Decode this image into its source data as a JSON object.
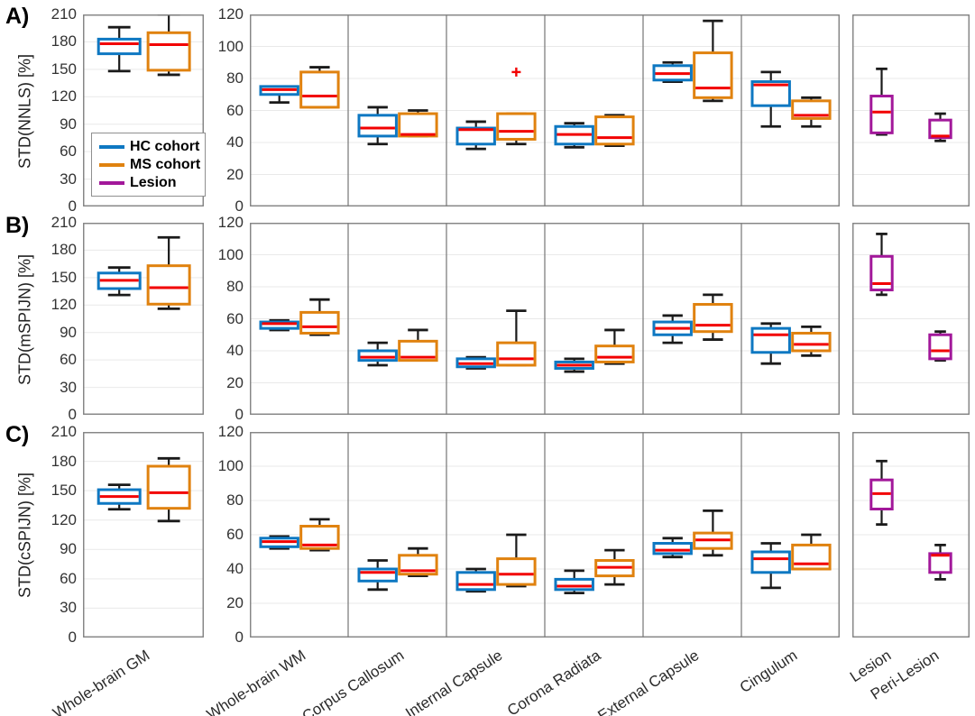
{
  "colors": {
    "hc": "#0e78c2",
    "ms": "#e0820f",
    "lesion": "#a2189a",
    "median": "#f20000",
    "outlier": "#f20000",
    "whisker": "#1a1a1a",
    "grid": "#e9e9e9",
    "axis": "#808080"
  },
  "legend": {
    "items": [
      {
        "label": "HC cohort",
        "color_key": "hc"
      },
      {
        "label": "MS cohort",
        "color_key": "ms"
      },
      {
        "label": "Lesion",
        "color_key": "lesion"
      }
    ]
  },
  "x_axis_labels": [
    "Whole-brain GM",
    "Whole-brain WM",
    "Corpus Callosum",
    "Internal Capsule",
    "Corona Radiata",
    "External Capsule",
    "Cingulum",
    "Lesion",
    "Peri-Lesion"
  ],
  "chart_data": [
    {
      "type": "box",
      "panel_label": "A)",
      "ylabel": "STD(NNLS) [%]",
      "panels": [
        {
          "name": "whole-brain-gm",
          "ylim": [
            0,
            210
          ],
          "yticks": [
            0,
            30,
            60,
            90,
            120,
            150,
            180,
            210
          ],
          "show_yticks": true,
          "categories": [
            {
              "boxes": [
                {
                  "series": "HC cohort",
                  "color_key": "hc",
                  "lo": 148,
                  "q1": 167,
                  "med": 178,
                  "q3": 183,
                  "hi": 196
                },
                {
                  "series": "MS cohort",
                  "color_key": "ms",
                  "lo": 144,
                  "q1": 149,
                  "med": 177,
                  "q3": 190,
                  "hi": 210
                }
              ]
            }
          ]
        },
        {
          "name": "wm-regions",
          "ylim": [
            0,
            120
          ],
          "yticks": [
            0,
            20,
            40,
            60,
            80,
            100,
            120
          ],
          "show_yticks": true,
          "categories": [
            {
              "boxes": [
                {
                  "series": "HC cohort",
                  "color_key": "hc",
                  "lo": 65,
                  "q1": 70,
                  "med": 73,
                  "q3": 75,
                  "hi": 75
                },
                {
                  "series": "MS cohort",
                  "color_key": "ms",
                  "lo": 62,
                  "q1": 62,
                  "med": 69,
                  "q3": 84,
                  "hi": 87
                }
              ]
            },
            {
              "boxes": [
                {
                  "series": "HC cohort",
                  "color_key": "hc",
                  "lo": 39,
                  "q1": 44,
                  "med": 49,
                  "q3": 57,
                  "hi": 62
                },
                {
                  "series": "MS cohort",
                  "color_key": "ms",
                  "lo": 44,
                  "q1": 44,
                  "med": 45,
                  "q3": 58,
                  "hi": 60
                }
              ]
            },
            {
              "boxes": [
                {
                  "series": "HC cohort",
                  "color_key": "hc",
                  "lo": 36,
                  "q1": 39,
                  "med": 48,
                  "q3": 49,
                  "hi": 53
                },
                {
                  "series": "MS cohort",
                  "color_key": "ms",
                  "lo": 39,
                  "q1": 42,
                  "med": 47,
                  "q3": 58,
                  "hi": 58,
                  "outliers": [
                    84
                  ]
                }
              ]
            },
            {
              "boxes": [
                {
                  "series": "HC cohort",
                  "color_key": "hc",
                  "lo": 37,
                  "q1": 39,
                  "med": 45,
                  "q3": 50,
                  "hi": 52
                },
                {
                  "series": "MS cohort",
                  "color_key": "ms",
                  "lo": 38,
                  "q1": 39,
                  "med": 43,
                  "q3": 56,
                  "hi": 57
                }
              ]
            },
            {
              "boxes": [
                {
                  "series": "HC cohort",
                  "color_key": "hc",
                  "lo": 78,
                  "q1": 79,
                  "med": 83,
                  "q3": 88,
                  "hi": 90
                },
                {
                  "series": "MS cohort",
                  "color_key": "ms",
                  "lo": 66,
                  "q1": 68,
                  "med": 74,
                  "q3": 96,
                  "hi": 116
                }
              ]
            },
            {
              "boxes": [
                {
                  "series": "HC cohort",
                  "color_key": "hc",
                  "lo": 50,
                  "q1": 63,
                  "med": 76,
                  "q3": 78,
                  "hi": 84
                },
                {
                  "series": "MS cohort",
                  "color_key": "ms",
                  "lo": 50,
                  "q1": 55,
                  "med": 57,
                  "q3": 66,
                  "hi": 68
                }
              ]
            }
          ]
        },
        {
          "name": "lesion",
          "ylim": [
            0,
            120
          ],
          "yticks": [
            0,
            20,
            40,
            60,
            80,
            100,
            120
          ],
          "show_yticks": false,
          "categories": [
            {
              "boxes": [
                {
                  "series": "Lesion",
                  "color_key": "lesion",
                  "lo": 45,
                  "q1": 46,
                  "med": 59,
                  "q3": 69,
                  "hi": 86
                }
              ]
            },
            {
              "boxes": [
                {
                  "series": "Lesion",
                  "color_key": "lesion",
                  "lo": 41,
                  "q1": 43,
                  "med": 44,
                  "q3": 54,
                  "hi": 58
                }
              ]
            }
          ]
        }
      ]
    },
    {
      "type": "box",
      "panel_label": "B)",
      "ylabel": "STD(mSPIJN) [%]",
      "panels": [
        {
          "name": "whole-brain-gm",
          "ylim": [
            0,
            210
          ],
          "yticks": [
            0,
            30,
            60,
            90,
            120,
            150,
            180,
            210
          ],
          "show_yticks": true,
          "categories": [
            {
              "boxes": [
                {
                  "series": "HC cohort",
                  "color_key": "hc",
                  "lo": 131,
                  "q1": 138,
                  "med": 147,
                  "q3": 155,
                  "hi": 161
                },
                {
                  "series": "MS cohort",
                  "color_key": "ms",
                  "lo": 116,
                  "q1": 121,
                  "med": 139,
                  "q3": 163,
                  "hi": 194
                }
              ]
            }
          ]
        },
        {
          "name": "wm-regions",
          "ylim": [
            0,
            120
          ],
          "yticks": [
            0,
            20,
            40,
            60,
            80,
            100,
            120
          ],
          "show_yticks": true,
          "categories": [
            {
              "boxes": [
                {
                  "series": "HC cohort",
                  "color_key": "hc",
                  "lo": 53,
                  "q1": 54,
                  "med": 57,
                  "q3": 58,
                  "hi": 59
                },
                {
                  "series": "MS cohort",
                  "color_key": "ms",
                  "lo": 50,
                  "q1": 51,
                  "med": 55,
                  "q3": 64,
                  "hi": 72
                }
              ]
            },
            {
              "boxes": [
                {
                  "series": "HC cohort",
                  "color_key": "hc",
                  "lo": 31,
                  "q1": 34,
                  "med": 36,
                  "q3": 40,
                  "hi": 45
                },
                {
                  "series": "MS cohort",
                  "color_key": "ms",
                  "lo": 34,
                  "q1": 34,
                  "med": 36,
                  "q3": 46,
                  "hi": 53
                }
              ]
            },
            {
              "boxes": [
                {
                  "series": "HC cohort",
                  "color_key": "hc",
                  "lo": 29,
                  "q1": 30,
                  "med": 32,
                  "q3": 35,
                  "hi": 36
                },
                {
                  "series": "MS cohort",
                  "color_key": "ms",
                  "lo": 31,
                  "q1": 31,
                  "med": 35,
                  "q3": 45,
                  "hi": 65
                }
              ]
            },
            {
              "boxes": [
                {
                  "series": "HC cohort",
                  "color_key": "hc",
                  "lo": 27,
                  "q1": 29,
                  "med": 31,
                  "q3": 33,
                  "hi": 35
                },
                {
                  "series": "MS cohort",
                  "color_key": "ms",
                  "lo": 32,
                  "q1": 33,
                  "med": 36,
                  "q3": 43,
                  "hi": 53
                }
              ]
            },
            {
              "boxes": [
                {
                  "series": "HC cohort",
                  "color_key": "hc",
                  "lo": 45,
                  "q1": 50,
                  "med": 54,
                  "q3": 58,
                  "hi": 62
                },
                {
                  "series": "MS cohort",
                  "color_key": "ms",
                  "lo": 47,
                  "q1": 52,
                  "med": 56,
                  "q3": 69,
                  "hi": 75
                }
              ]
            },
            {
              "boxes": [
                {
                  "series": "HC cohort",
                  "color_key": "hc",
                  "lo": 32,
                  "q1": 39,
                  "med": 50,
                  "q3": 54,
                  "hi": 57
                },
                {
                  "series": "MS cohort",
                  "color_key": "ms",
                  "lo": 37,
                  "q1": 40,
                  "med": 44,
                  "q3": 51,
                  "hi": 55
                }
              ]
            }
          ]
        },
        {
          "name": "lesion",
          "ylim": [
            0,
            120
          ],
          "yticks": [
            0,
            20,
            40,
            60,
            80,
            100,
            120
          ],
          "show_yticks": false,
          "categories": [
            {
              "boxes": [
                {
                  "series": "Lesion",
                  "color_key": "lesion",
                  "lo": 75,
                  "q1": 78,
                  "med": 82,
                  "q3": 99,
                  "hi": 113
                }
              ]
            },
            {
              "boxes": [
                {
                  "series": "Lesion",
                  "color_key": "lesion",
                  "lo": 34,
                  "q1": 35,
                  "med": 40,
                  "q3": 50,
                  "hi": 52
                }
              ]
            }
          ]
        }
      ]
    },
    {
      "type": "box",
      "panel_label": "C)",
      "ylabel": "STD(cSPIJN) [%]",
      "panels": [
        {
          "name": "whole-brain-gm",
          "ylim": [
            0,
            210
          ],
          "yticks": [
            0,
            30,
            60,
            90,
            120,
            150,
            180,
            210
          ],
          "show_yticks": true,
          "categories": [
            {
              "boxes": [
                {
                  "series": "HC cohort",
                  "color_key": "hc",
                  "lo": 131,
                  "q1": 137,
                  "med": 144,
                  "q3": 151,
                  "hi": 156
                },
                {
                  "series": "MS cohort",
                  "color_key": "ms",
                  "lo": 119,
                  "q1": 132,
                  "med": 148,
                  "q3": 175,
                  "hi": 183
                }
              ]
            }
          ]
        },
        {
          "name": "wm-regions",
          "ylim": [
            0,
            120
          ],
          "yticks": [
            0,
            20,
            40,
            60,
            80,
            100,
            120
          ],
          "show_yticks": true,
          "categories": [
            {
              "boxes": [
                {
                  "series": "HC cohort",
                  "color_key": "hc",
                  "lo": 52,
                  "q1": 53,
                  "med": 56,
                  "q3": 58,
                  "hi": 59
                },
                {
                  "series": "MS cohort",
                  "color_key": "ms",
                  "lo": 51,
                  "q1": 52,
                  "med": 54,
                  "q3": 65,
                  "hi": 69
                }
              ]
            },
            {
              "boxes": [
                {
                  "series": "HC cohort",
                  "color_key": "hc",
                  "lo": 28,
                  "q1": 33,
                  "med": 38,
                  "q3": 40,
                  "hi": 45
                },
                {
                  "series": "MS cohort",
                  "color_key": "ms",
                  "lo": 36,
                  "q1": 37,
                  "med": 39,
                  "q3": 48,
                  "hi": 52
                }
              ]
            },
            {
              "boxes": [
                {
                  "series": "HC cohort",
                  "color_key": "hc",
                  "lo": 27,
                  "q1": 28,
                  "med": 31,
                  "q3": 38,
                  "hi": 40
                },
                {
                  "series": "MS cohort",
                  "color_key": "ms",
                  "lo": 30,
                  "q1": 31,
                  "med": 37,
                  "q3": 46,
                  "hi": 60
                }
              ]
            },
            {
              "boxes": [
                {
                  "series": "HC cohort",
                  "color_key": "hc",
                  "lo": 26,
                  "q1": 28,
                  "med": 30,
                  "q3": 34,
                  "hi": 39
                },
                {
                  "series": "MS cohort",
                  "color_key": "ms",
                  "lo": 31,
                  "q1": 36,
                  "med": 41,
                  "q3": 45,
                  "hi": 51
                }
              ]
            },
            {
              "boxes": [
                {
                  "series": "HC cohort",
                  "color_key": "hc",
                  "lo": 47,
                  "q1": 49,
                  "med": 51,
                  "q3": 55,
                  "hi": 58
                },
                {
                  "series": "MS cohort",
                  "color_key": "ms",
                  "lo": 48,
                  "q1": 52,
                  "med": 57,
                  "q3": 61,
                  "hi": 74
                }
              ]
            },
            {
              "boxes": [
                {
                  "series": "HC cohort",
                  "color_key": "hc",
                  "lo": 29,
                  "q1": 38,
                  "med": 46,
                  "q3": 50,
                  "hi": 55
                },
                {
                  "series": "MS cohort",
                  "color_key": "ms",
                  "lo": 40,
                  "q1": 40,
                  "med": 43,
                  "q3": 54,
                  "hi": 60
                }
              ]
            }
          ]
        },
        {
          "name": "lesion",
          "ylim": [
            0,
            120
          ],
          "yticks": [
            0,
            20,
            40,
            60,
            80,
            100,
            120
          ],
          "show_yticks": false,
          "categories": [
            {
              "boxes": [
                {
                  "series": "Lesion",
                  "color_key": "lesion",
                  "lo": 66,
                  "q1": 75,
                  "med": 84,
                  "q3": 92,
                  "hi": 103
                }
              ]
            },
            {
              "boxes": [
                {
                  "series": "Lesion",
                  "color_key": "lesion",
                  "lo": 34,
                  "q1": 38,
                  "med": 48,
                  "q3": 49,
                  "hi": 54
                }
              ]
            }
          ]
        }
      ]
    }
  ]
}
